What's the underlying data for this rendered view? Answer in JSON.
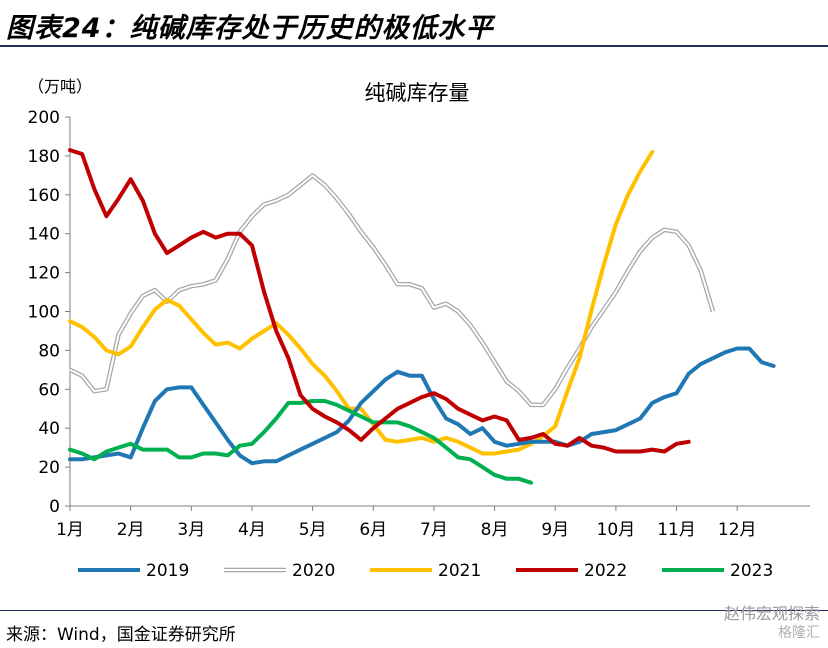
{
  "header": {
    "title": "图表24：纯碱库存处于历史的极低水平"
  },
  "footer": {
    "source": "来源：Wind，国金证券研究所",
    "watermark": "赵伟宏观探索",
    "watermark2": "格隆汇"
  },
  "colors": {
    "2019": "#1f77b4",
    "2020": "#a6a6a6",
    "2021": "#ffc000",
    "2022": "#c00000",
    "2023": "#00b050",
    "rule": "#1f2d5a"
  },
  "chart_data": {
    "type": "line",
    "title": "纯碱库存量",
    "ylabel": "（万吨）",
    "ylim": [
      0,
      200
    ],
    "yticks": [
      "0",
      "20",
      "40",
      "60",
      "80",
      "100",
      "120",
      "140",
      "160",
      "180",
      "200"
    ],
    "xlim": [
      1,
      13.2
    ],
    "xticks": [
      "1月",
      "2月",
      "3月",
      "4月",
      "5月",
      "6月",
      "7月",
      "8月",
      "9月",
      "10月",
      "11月",
      "12月"
    ],
    "legend_position": "bottom",
    "series": [
      {
        "name": "2019",
        "color": "#1f77b4",
        "outline": false,
        "x": [
          1.0,
          1.2,
          1.4,
          1.6,
          1.8,
          2.0,
          2.2,
          2.4,
          2.6,
          2.8,
          3.0,
          3.2,
          3.4,
          3.6,
          3.8,
          4.0,
          4.2,
          4.4,
          4.6,
          4.8,
          5.0,
          5.2,
          5.4,
          5.6,
          5.8,
          6.0,
          6.2,
          6.4,
          6.6,
          6.8,
          7.0,
          7.2,
          7.4,
          7.6,
          7.8,
          8.0,
          8.2,
          8.4,
          8.6,
          8.8,
          9.0,
          9.2,
          9.4,
          9.6,
          9.8,
          10.0,
          10.2,
          10.4,
          10.6,
          10.8,
          11.0,
          11.2,
          11.4,
          11.6,
          11.8,
          12.0,
          12.2,
          12.4,
          12.6,
          12.8,
          13.0
        ],
        "y": [
          24,
          24,
          25,
          26,
          27,
          25,
          40,
          54,
          60,
          61,
          61,
          52,
          43,
          34,
          26,
          22,
          23,
          23,
          26,
          29,
          32,
          35,
          38,
          44,
          53,
          59,
          65,
          69,
          67,
          67,
          55,
          45,
          42,
          37,
          40,
          33,
          31,
          32,
          33,
          33,
          33,
          31,
          33,
          37,
          38,
          39,
          42,
          45,
          53,
          56,
          58,
          68,
          73,
          76,
          79,
          81,
          81,
          74,
          72,
          null,
          null
        ]
      },
      {
        "name": "2020",
        "color": "#ffffff",
        "outline": true,
        "x": [
          1.0,
          1.2,
          1.4,
          1.6,
          1.8,
          2.0,
          2.2,
          2.4,
          2.6,
          2.8,
          3.0,
          3.2,
          3.4,
          3.6,
          3.8,
          4.0,
          4.2,
          4.4,
          4.6,
          4.8,
          5.0,
          5.2,
          5.4,
          5.6,
          5.8,
          6.0,
          6.2,
          6.4,
          6.6,
          6.8,
          7.0,
          7.2,
          7.4,
          7.6,
          7.8,
          8.0,
          8.2,
          8.4,
          8.6,
          8.8,
          9.0,
          9.2,
          9.4,
          9.6,
          9.8,
          10.0,
          10.2,
          10.4,
          10.6,
          10.8,
          11.0,
          11.2,
          11.4,
          11.6,
          11.8,
          12.0,
          12.2,
          12.4,
          12.6,
          12.8,
          13.0
        ],
        "y": [
          70,
          67,
          59,
          60,
          88,
          99,
          108,
          111,
          105,
          111,
          113,
          114,
          116,
          127,
          141,
          149,
          155,
          157,
          160,
          165,
          170,
          165,
          158,
          150,
          141,
          133,
          124,
          114,
          114,
          112,
          102,
          104,
          100,
          93,
          84,
          74,
          64,
          59,
          52,
          52,
          60,
          71,
          81,
          92,
          101,
          110,
          121,
          131,
          138,
          142,
          141,
          134,
          121,
          100,
          null,
          null,
          null,
          null,
          null,
          null,
          null
        ]
      },
      {
        "name": "2021",
        "color": "#ffc000",
        "outline": false,
        "x": [
          1.0,
          1.2,
          1.4,
          1.6,
          1.8,
          2.0,
          2.2,
          2.4,
          2.6,
          2.8,
          3.0,
          3.2,
          3.4,
          3.6,
          3.8,
          4.0,
          4.2,
          4.4,
          4.6,
          4.8,
          5.0,
          5.2,
          5.4,
          5.6,
          5.8,
          6.0,
          6.2,
          6.4,
          6.6,
          6.8,
          7.0,
          7.2,
          7.4,
          7.6,
          7.8,
          8.0,
          8.2,
          8.4,
          8.6,
          8.8,
          9.0,
          9.2,
          9.4,
          9.6,
          9.8,
          10.0,
          10.2,
          10.4,
          10.6,
          10.8,
          11.0,
          11.2,
          11.4,
          11.6,
          11.8,
          12.0,
          12.2,
          12.4,
          12.6,
          12.8,
          13.0
        ],
        "y": [
          95,
          92,
          87,
          80,
          78,
          82,
          92,
          101,
          106,
          103,
          96,
          89,
          83,
          84,
          81,
          86,
          90,
          94,
          88,
          81,
          73,
          67,
          59,
          50,
          50,
          42,
          34,
          33,
          34,
          35,
          33,
          35,
          33,
          30,
          27,
          27,
          28,
          29,
          32,
          36,
          41,
          59,
          76,
          101,
          124,
          145,
          160,
          172,
          182,
          null,
          null,
          null,
          null,
          null,
          null,
          null,
          null,
          null,
          null,
          null,
          null
        ]
      },
      {
        "name": "2022",
        "color": "#c00000",
        "outline": false,
        "x": [
          1.0,
          1.2,
          1.4,
          1.6,
          1.8,
          2.0,
          2.2,
          2.4,
          2.6,
          2.8,
          3.0,
          3.2,
          3.4,
          3.6,
          3.8,
          4.0,
          4.2,
          4.4,
          4.6,
          4.8,
          5.0,
          5.2,
          5.4,
          5.6,
          5.8,
          6.0,
          6.2,
          6.4,
          6.6,
          6.8,
          7.0,
          7.2,
          7.4,
          7.6,
          7.8,
          8.0,
          8.2,
          8.4,
          8.6,
          8.8,
          9.0,
          9.2,
          9.4,
          9.6,
          9.8,
          10.0,
          10.2,
          10.4,
          10.6,
          10.8,
          11.0,
          11.2,
          11.4,
          11.6,
          11.8,
          12.0,
          12.2,
          12.4,
          12.6,
          12.8,
          13.0
        ],
        "y": [
          183,
          181,
          163,
          149,
          158,
          168,
          157,
          140,
          130,
          134,
          138,
          141,
          138,
          140,
          140,
          134,
          110,
          90,
          76,
          57,
          50,
          46,
          43,
          39,
          34,
          40,
          45,
          50,
          53,
          56,
          58,
          55,
          50,
          47,
          44,
          46,
          44,
          34,
          35,
          37,
          32,
          31,
          35,
          31,
          30,
          28,
          28,
          28,
          29,
          28,
          32,
          33,
          null,
          null,
          null,
          null,
          null,
          null,
          null,
          null,
          null
        ]
      },
      {
        "name": "2023",
        "color": "#00b050",
        "outline": false,
        "x": [
          1.0,
          1.2,
          1.4,
          1.6,
          1.8,
          2.0,
          2.2,
          2.4,
          2.6,
          2.8,
          3.0,
          3.2,
          3.4,
          3.6,
          3.8,
          4.0,
          4.2,
          4.4,
          4.6,
          4.8,
          5.0,
          5.2,
          5.4,
          5.6,
          5.8,
          6.0,
          6.2,
          6.4,
          6.6,
          6.8,
          7.0,
          7.2,
          7.4,
          7.6,
          7.8,
          8.0,
          8.2,
          8.4,
          8.6,
          8.8,
          9.0,
          9.2,
          9.4,
          9.6,
          9.8,
          10.0,
          10.2,
          10.4,
          10.6,
          10.8,
          11.0,
          11.2,
          11.4,
          11.6,
          11.8,
          12.0,
          12.2,
          12.4,
          12.6,
          12.8,
          13.0
        ],
        "y": [
          29,
          27,
          24,
          28,
          30,
          32,
          29,
          29,
          29,
          25,
          25,
          27,
          27,
          26,
          31,
          32,
          38,
          45,
          53,
          53,
          54,
          54,
          52,
          49,
          46,
          43,
          43,
          43,
          41,
          38,
          35,
          30,
          25,
          24,
          20,
          16,
          14,
          14,
          12,
          null,
          null,
          null,
          null,
          null,
          null,
          null,
          null,
          null,
          null,
          null,
          null,
          null,
          null,
          null,
          null,
          null,
          null,
          null,
          null,
          null,
          null
        ]
      }
    ]
  }
}
